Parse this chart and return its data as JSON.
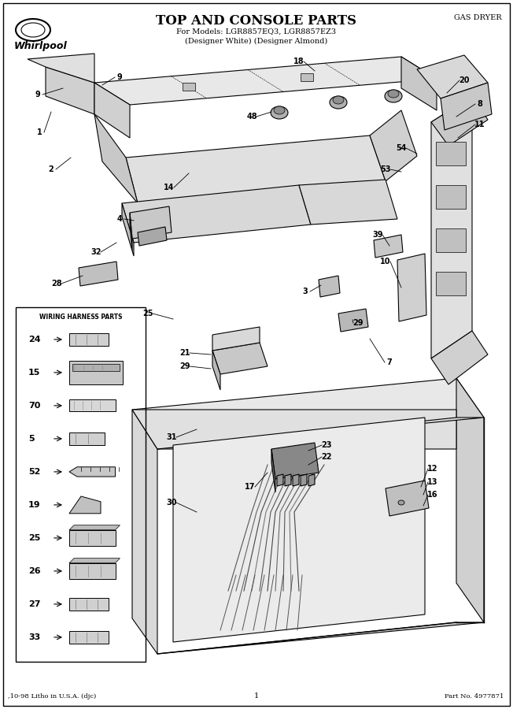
{
  "title": "TOP AND CONSOLE PARTS",
  "subtitle1": "For Models: LGR8857EQ3, LGR8857EZ3",
  "subtitle2": "(Designer White) (Designer Almond)",
  "top_right": "GAS DRYER",
  "bottom_left": ",10-98 Litho in U.S.A. (djc)",
  "bottom_center": "1",
  "bottom_right": "Part No. 4977871",
  "brand": "Whirlpool",
  "wiring_harness_title": "WIRING HARNESS PARTS",
  "wiring_harness_parts": [
    "24",
    "15",
    "70",
    "5",
    "52",
    "19",
    "25",
    "26",
    "27",
    "33"
  ],
  "bg_color": "#ffffff",
  "border_color": "#000000",
  "text_color": "#000000",
  "fig_width": 6.52,
  "fig_height": 9.0,
  "dpi": 100
}
